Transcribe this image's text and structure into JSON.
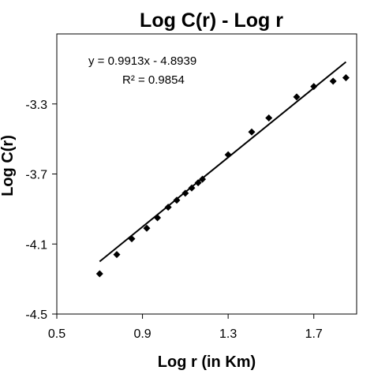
{
  "chart_data": {
    "type": "scatter",
    "title": "Log C(r) - Log r",
    "xlabel": "Log r (in Km)",
    "ylabel": "Log C(r)",
    "xlim": [
      0.5,
      1.9
    ],
    "ylim": [
      -4.5,
      -2.9
    ],
    "xticks": [
      0.5,
      0.9,
      1.3,
      1.7
    ],
    "xtick_labels": [
      "0.5",
      "0.9",
      "1.3",
      "1.7"
    ],
    "yticks": [
      -4.5,
      -4.1,
      -3.7,
      -3.3
    ],
    "ytick_labels": [
      "-4.5",
      "-4.1",
      "-3.7",
      "-3.3"
    ],
    "grid": false,
    "legend": "none",
    "series": [
      {
        "points": [
          {
            "x": 0.7,
            "y": -4.27
          },
          {
            "x": 0.78,
            "y": -4.16
          },
          {
            "x": 0.85,
            "y": -4.07
          },
          {
            "x": 0.92,
            "y": -4.01
          },
          {
            "x": 0.97,
            "y": -3.95
          },
          {
            "x": 1.02,
            "y": -3.89
          },
          {
            "x": 1.06,
            "y": -3.85
          },
          {
            "x": 1.1,
            "y": -3.81
          },
          {
            "x": 1.13,
            "y": -3.78
          },
          {
            "x": 1.16,
            "y": -3.75
          },
          {
            "x": 1.18,
            "y": -3.73
          },
          {
            "x": 1.3,
            "y": -3.59
          },
          {
            "x": 1.41,
            "y": -3.46
          },
          {
            "x": 1.49,
            "y": -3.38
          },
          {
            "x": 1.62,
            "y": -3.26
          },
          {
            "x": 1.7,
            "y": -3.2
          },
          {
            "x": 1.79,
            "y": -3.17
          },
          {
            "x": 1.85,
            "y": -3.15
          }
        ],
        "marker_color": "#000000"
      }
    ],
    "trendline": {
      "slope": 0.9913,
      "intercept": -4.8939,
      "x_range": [
        0.7,
        1.85
      ],
      "color": "#000000"
    },
    "annotations": {
      "equation": "y = 0.9913x - 4.8939",
      "r_squared": "R² = 0.9854"
    }
  }
}
